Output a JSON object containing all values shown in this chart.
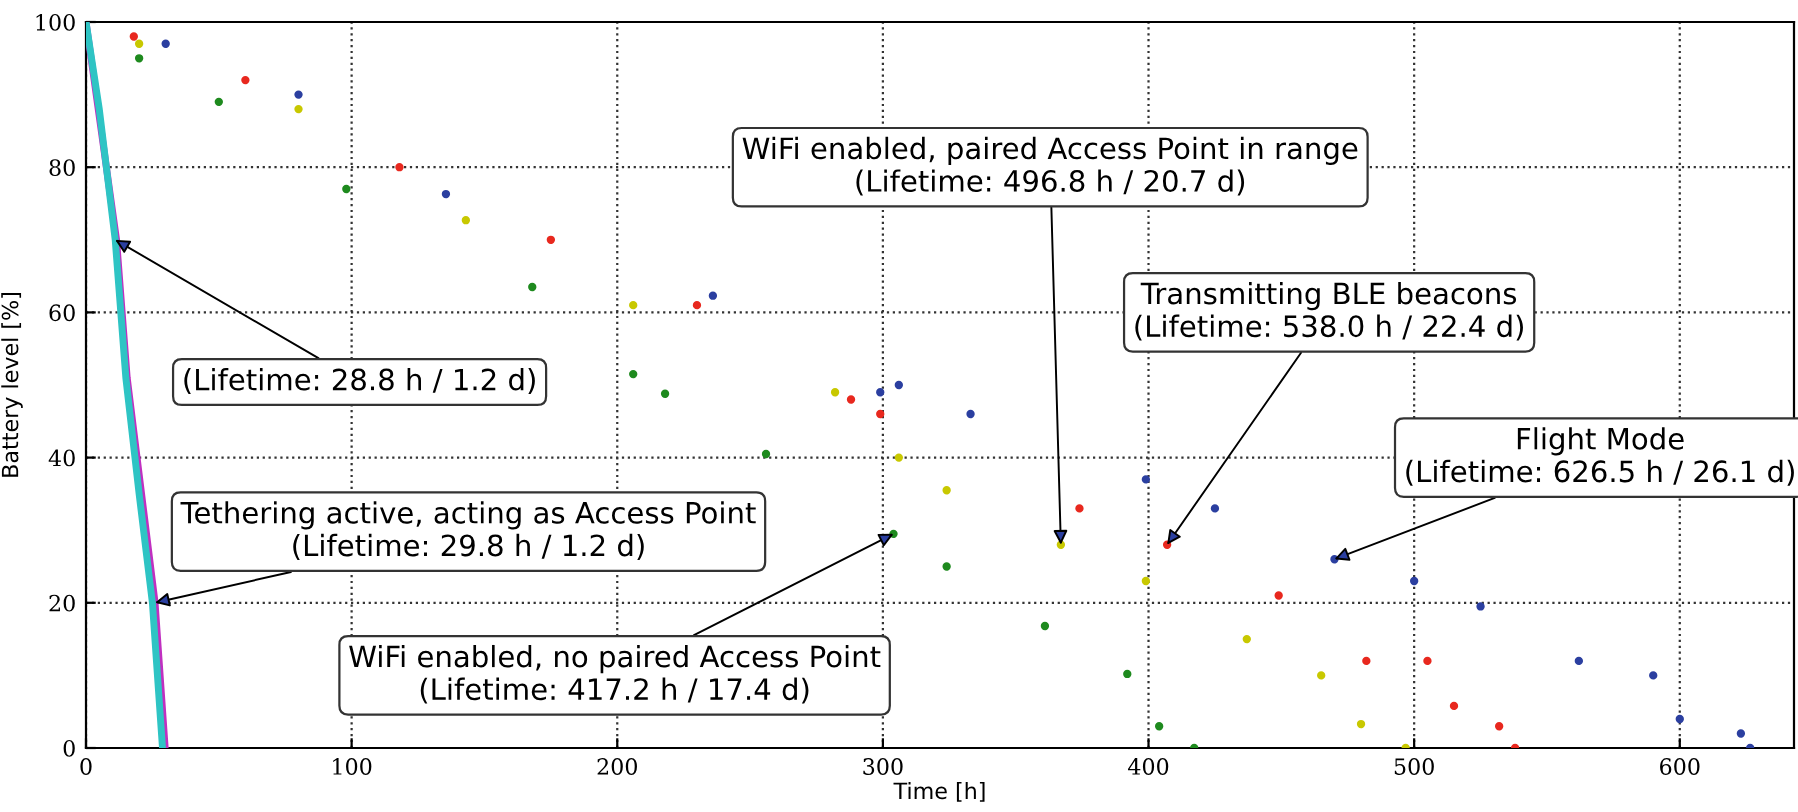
{
  "chart_data": {
    "type": "scatter",
    "xlabel": "Time [h]",
    "ylabel": "Battery level [%]",
    "xlim": [
      0,
      643
    ],
    "ylim": [
      0,
      100
    ],
    "xticks": [
      0,
      100,
      200,
      300,
      400,
      500,
      600
    ],
    "yticks": [
      0,
      20,
      40,
      60,
      80,
      100
    ],
    "grid": true,
    "series": [
      {
        "color": "#2b3fa0",
        "marker": "circle",
        "x": [
          30,
          80,
          135.5,
          236,
          299,
          306,
          333,
          399,
          425,
          470,
          500,
          525,
          562,
          590,
          600,
          623,
          626.5
        ],
        "values": [
          97,
          90,
          76.3,
          62.3,
          49,
          50,
          46,
          37,
          33,
          26,
          23,
          19.5,
          12,
          10,
          4,
          2,
          0
        ]
      },
      {
        "color": "#e8281e",
        "marker": "circle",
        "x": [
          18,
          60,
          118,
          175,
          230,
          288,
          299,
          374,
          407,
          449,
          482,
          505,
          515,
          532,
          538
        ],
        "values": [
          98,
          92,
          80,
          70,
          61,
          48,
          46,
          33,
          28,
          21,
          12,
          12,
          5.8,
          3,
          0
        ]
      },
      {
        "color": "#c8c800",
        "marker": "circle",
        "x": [
          20,
          80,
          143,
          206,
          282,
          306,
          324,
          367,
          399,
          437,
          465,
          480,
          496.8
        ],
        "values": [
          97,
          88,
          72.7,
          61,
          49,
          40,
          35.5,
          28,
          23,
          15,
          10,
          3.3,
          0
        ]
      },
      {
        "color": "#1e8a1e",
        "marker": "circle",
        "x": [
          20,
          50,
          98,
          168,
          206,
          218,
          256,
          304,
          324,
          361,
          392,
          404,
          417.2
        ],
        "values": [
          95,
          89,
          77,
          63.5,
          51.5,
          48.8,
          40.5,
          29.5,
          25,
          16.8,
          10.2,
          3,
          0
        ]
      },
      {
        "type": "line",
        "color": "#c030c0",
        "x": [
          0,
          11.5,
          15.5,
          26,
          29.8
        ],
        "values": [
          100,
          70,
          51,
          20,
          0
        ]
      },
      {
        "type": "line",
        "color": "#2ec4c4",
        "x": [
          0,
          5,
          11,
          15,
          20,
          25,
          28.8
        ],
        "values": [
          100,
          88,
          70,
          51,
          35,
          20,
          0
        ]
      }
    ],
    "annotations": [
      {
        "text": "(Lifetime: 28.8 h / 1.2 d)",
        "x": 11,
        "y": 70
      },
      {
        "text": "Tethering active, acting as Access Point\n(Lifetime: 29.8 h / 1.2 d)",
        "x": 26,
        "y": 20
      },
      {
        "text": "WiFi enabled, no paired Access Point\n(Lifetime: 417.2 h / 17.4 d)",
        "x": 304,
        "y": 29.5
      },
      {
        "text": "WiFi enabled, paired Access Point in range\n(Lifetime: 496.8 h / 20.7 d)",
        "x": 367,
        "y": 28
      },
      {
        "text": "Transmitting BLE beacons\n(Lifetime: 538.0 h / 22.4 d)",
        "x": 407,
        "y": 28
      },
      {
        "text": "Flight Mode\n(Lifetime: 626.5 h / 26.1 d)",
        "x": 470,
        "y": 26
      }
    ]
  }
}
